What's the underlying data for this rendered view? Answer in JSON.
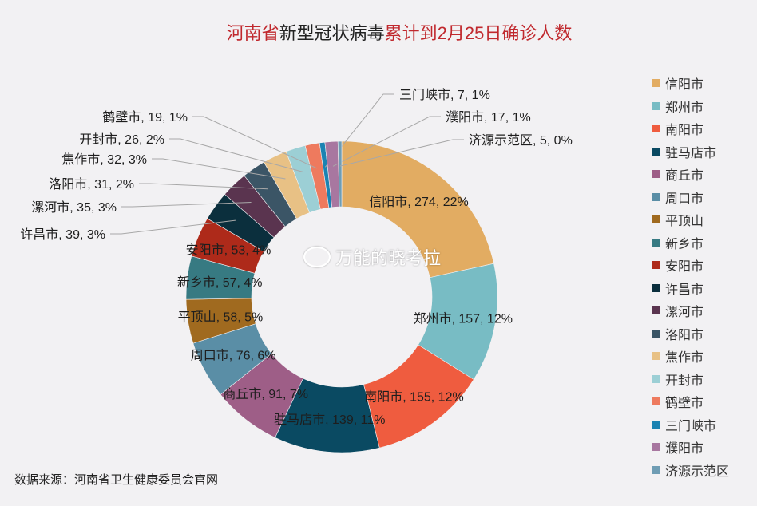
{
  "title": {
    "part1": "河南省",
    "part2": "新型冠状病毒",
    "part3": "累计到2月25日确诊人数"
  },
  "source": "数据来源：河南省卫生健康委员会官网",
  "watermark": "万能的晓考拉",
  "chart_data": {
    "type": "pie",
    "subtype": "donut",
    "title": "河南省新型冠状病毒累计到2月25日确诊人数",
    "legend_position": "right",
    "label_format": "{name}, {value}, {percent}",
    "categories": [
      "信阳市",
      "郑州市",
      "南阳市",
      "驻马店市",
      "商丘市",
      "周口市",
      "平顶山",
      "新乡市",
      "安阳市",
      "许昌市",
      "漯河市",
      "洛阳市",
      "焦作市",
      "开封市",
      "鹤壁市",
      "三门峡市",
      "濮阳市",
      "济源示范区"
    ],
    "values": [
      274,
      157,
      155,
      139,
      91,
      76,
      58,
      57,
      53,
      39,
      35,
      31,
      32,
      26,
      19,
      7,
      17,
      5
    ],
    "percent_labels": [
      "22%",
      "12%",
      "12%",
      "11%",
      "7%",
      "6%",
      "5%",
      "4%",
      "4%",
      "3%",
      "3%",
      "2%",
      "3%",
      "2%",
      "1%",
      "1%",
      "1%",
      "0%"
    ],
    "colors": [
      "#e2ac62",
      "#78bcc4",
      "#ef5c3f",
      "#0a4a62",
      "#9e5e87",
      "#5a8ea6",
      "#a06a1f",
      "#377a82",
      "#ae2a1a",
      "#0b2f3d",
      "#5a344f",
      "#3b5566",
      "#e8c185",
      "#9ccfd5",
      "#ee7a5e",
      "#1b83b2",
      "#a877a0",
      "#6f9db4"
    ]
  }
}
